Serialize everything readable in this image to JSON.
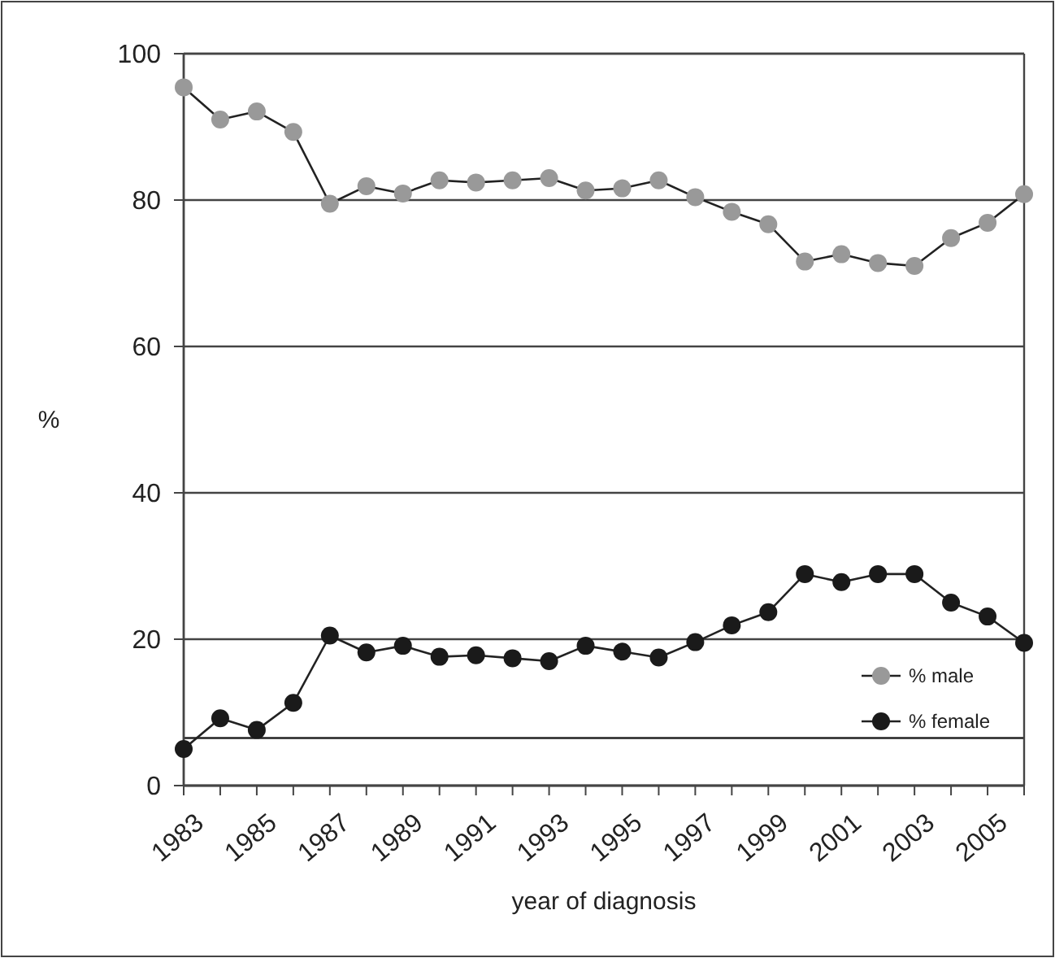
{
  "chart_data": {
    "type": "line",
    "xlabel": "year of diagnosis",
    "ylabel": "%",
    "categories": [
      "1983",
      null,
      "1985",
      null,
      "1987",
      null,
      "1989",
      null,
      "1991",
      null,
      "1993",
      null,
      "1995",
      null,
      "1997",
      null,
      "1999",
      null,
      "2001",
      null,
      "2003",
      null,
      "2005",
      null
    ],
    "series": [
      {
        "name": "% male",
        "color": "#999999",
        "values": [
          95.4,
          91.0,
          92.1,
          89.3,
          79.5,
          81.9,
          80.9,
          82.7,
          82.4,
          82.7,
          83.0,
          81.3,
          81.6,
          82.7,
          80.4,
          78.4,
          76.7,
          71.6,
          72.6,
          71.4,
          71.0,
          74.8,
          76.9,
          80.8
        ]
      },
      {
        "name": "% female",
        "color": "#1a1a1a",
        "values": [
          5.0,
          9.2,
          7.6,
          11.3,
          20.5,
          18.2,
          19.1,
          17.6,
          17.8,
          17.4,
          17.0,
          19.1,
          18.3,
          17.5,
          19.6,
          21.9,
          23.7,
          28.9,
          27.8,
          28.9,
          28.9,
          25.0,
          23.1,
          19.5
        ]
      }
    ],
    "ylim": [
      0,
      100
    ],
    "yticks": [
      0,
      20,
      40,
      60,
      80,
      100
    ],
    "grid": "y",
    "legend": "right",
    "marker": "circle",
    "line_style": "solid",
    "ref_lines": [
      {
        "axis": "y",
        "value": 6.5,
        "color": "#222222"
      }
    ]
  }
}
